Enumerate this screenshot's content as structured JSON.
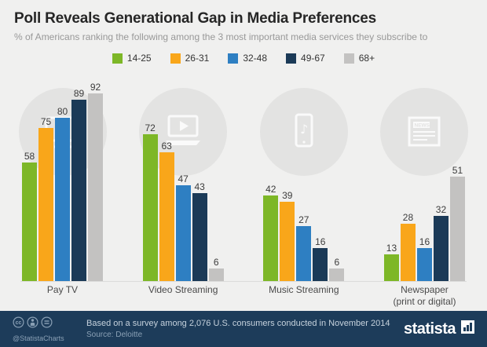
{
  "header": {
    "title": "Poll Reveals Generational Gap in Media Preferences",
    "subtitle": "% of Americans ranking the following among the 3 most important media services they subscribe to"
  },
  "chart_data": {
    "type": "bar",
    "title": "Poll Reveals Generational Gap in Media Preferences",
    "subtitle": "% of Americans ranking the following among the 3 most important media services they subscribe to",
    "categories": [
      "Pay TV",
      "Video Streaming",
      "Music Streaming",
      "Newspaper\n(print or digital)"
    ],
    "series": [
      {
        "name": "14-25",
        "color": "#7db727",
        "values": [
          58,
          72,
          42,
          13
        ]
      },
      {
        "name": "26-31",
        "color": "#f9a61a",
        "values": [
          75,
          63,
          39,
          28
        ]
      },
      {
        "name": "32-48",
        "color": "#2e7fc2",
        "values": [
          80,
          47,
          27,
          16
        ]
      },
      {
        "name": "49-67",
        "color": "#1b3a57",
        "values": [
          89,
          43,
          16,
          32
        ]
      },
      {
        "name": "68+",
        "color": "#c3c2c1",
        "values": [
          92,
          6,
          6,
          51
        ]
      }
    ],
    "ylim": [
      0,
      100
    ],
    "grid": false,
    "legend_position": "top",
    "xlabel": "",
    "ylabel": ""
  },
  "watermarks": [
    "tv",
    "video",
    "music",
    "news"
  ],
  "footer": {
    "handle": "@StatistaCharts",
    "note": "Based on a survey among 2,076 U.S. consumers conducted in November 2014",
    "source": "Source: Deloitte",
    "brand": "statista"
  }
}
